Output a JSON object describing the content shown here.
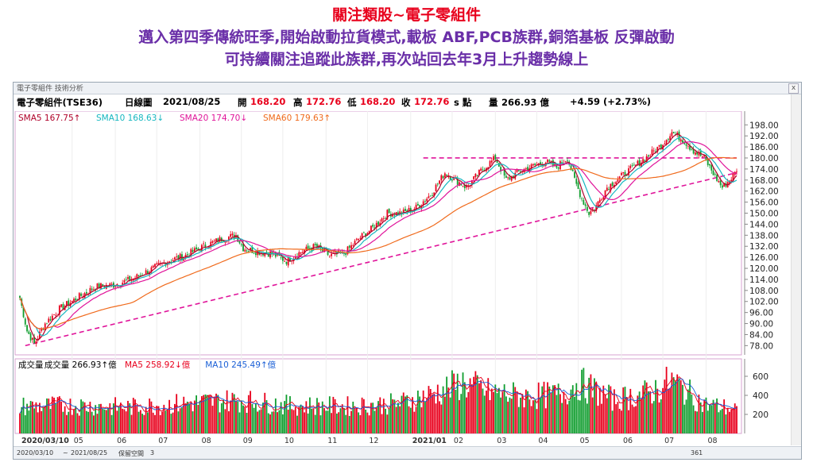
{
  "headline": {
    "line1": "關注類股~電子零組件",
    "line2": "邁入第四季傳統旺季,開始啟動拉貨模式,載板 ABF,PCB族群,銅箔基板 反彈啟動",
    "line3": "可持續關注追蹤此族群,再次站回去年3月上升趨勢線上"
  },
  "window": {
    "tab_title": "電子零組件 技術分析",
    "close_label": "x"
  },
  "quote": {
    "name": "電子零組件(TSE36)",
    "period": "日線圖",
    "date": "2021/08/25",
    "open_label": "開",
    "open": "168.20",
    "high_label": "高",
    "high": "172.76",
    "low_label": "低",
    "low": "168.20",
    "close_label": "收",
    "close": "172.76",
    "unit": "s 點",
    "volume_label": "量",
    "volume": "266.93 億",
    "change": "+4.59 (+2.73%)"
  },
  "price_legend": [
    {
      "text": "SMA5 167.75↑",
      "color": "#b0002a"
    },
    {
      "text": "SMA10 168.63↓",
      "color": "#17b7c0"
    },
    {
      "text": "SMA20 174.70↓",
      "color": "#e0149a"
    },
    {
      "text": "SMA60 179.63↑",
      "color": "#f06a1c"
    }
  ],
  "volume_legend": [
    {
      "text": "成交量",
      "color": "#000000"
    },
    {
      "text": "成交量 266.93↑億",
      "color": "#000000"
    },
    {
      "text": "MA5 258.92↓億",
      "color": "#e8001c"
    },
    {
      "text": "MA10 245.49↑億",
      "color": "#1a5fd6"
    }
  ],
  "bottom": {
    "start_date": "2020/03/10",
    "end_date": "2021/08/25",
    "range_label": "保留空間",
    "range_value": "3",
    "count": "361"
  },
  "colors": {
    "up": "#e8001c",
    "down": "#0f9d2e",
    "trend": "#e0149a"
  },
  "chart_data": [
    {
      "type": "candlestick",
      "y_ticks": [
        "198.00",
        "192.00",
        "186.00",
        "180.00",
        "174.00",
        "168.00",
        "162.00",
        "156.00",
        "150.00",
        "144.00",
        "138.00",
        "132.00",
        "126.00",
        "120.00",
        "114.00",
        "108.00",
        "102.00",
        "96.00",
        "90.00",
        "84.00",
        "78.00"
      ],
      "ylim": [
        76,
        202
      ],
      "x_labels": [
        "2020/03/10",
        "05",
        "06",
        "07",
        "08",
        "09",
        "10",
        "11",
        "12",
        "2021/01",
        "02",
        "03",
        "04",
        "05",
        "06",
        "07",
        "08"
      ],
      "close_anchors": [
        [
          0,
          104
        ],
        [
          4,
          86
        ],
        [
          8,
          79
        ],
        [
          14,
          90
        ],
        [
          22,
          98
        ],
        [
          32,
          104
        ],
        [
          42,
          110
        ],
        [
          52,
          111
        ],
        [
          62,
          114
        ],
        [
          72,
          119
        ],
        [
          82,
          124
        ],
        [
          92,
          127
        ],
        [
          102,
          132
        ],
        [
          112,
          136
        ],
        [
          120,
          138
        ],
        [
          124,
          131
        ],
        [
          132,
          129
        ],
        [
          140,
          128
        ],
        [
          148,
          124
        ],
        [
          156,
          129
        ],
        [
          164,
          132
        ],
        [
          172,
          127
        ],
        [
          180,
          128
        ],
        [
          188,
          136
        ],
        [
          196,
          142
        ],
        [
          204,
          150
        ],
        [
          212,
          150
        ],
        [
          220,
          153
        ],
        [
          228,
          160
        ],
        [
          236,
          172
        ],
        [
          242,
          168
        ],
        [
          248,
          164
        ],
        [
          256,
          173
        ],
        [
          264,
          180
        ],
        [
          270,
          168
        ],
        [
          278,
          173
        ],
        [
          286,
          176
        ],
        [
          292,
          178
        ],
        [
          298,
          175
        ],
        [
          304,
          180
        ],
        [
          308,
          168
        ],
        [
          312,
          158
        ],
        [
          316,
          150
        ],
        [
          320,
          154
        ],
        [
          326,
          164
        ],
        [
          334,
          170
        ],
        [
          342,
          176
        ],
        [
          350,
          182
        ],
        [
          356,
          187
        ],
        [
          362,
          194
        ],
        [
          368,
          190
        ],
        [
          374,
          184
        ],
        [
          380,
          180
        ],
        [
          386,
          170
        ],
        [
          390,
          164
        ],
        [
          394,
          168
        ],
        [
          398,
          172.76
        ]
      ],
      "trend_line": {
        "from": [
          3,
          78
        ],
        "to": [
          398,
          172
        ]
      },
      "resistance_line": {
        "from": [
          224,
          180
        ],
        "to": [
          398,
          180
        ]
      },
      "title": "",
      "xlabel": "",
      "ylabel": ""
    },
    {
      "type": "bar",
      "name": "volume",
      "y_ticks": [
        "600",
        "400",
        "200"
      ],
      "ylim": [
        0,
        700
      ],
      "volume_anchors": [
        [
          0,
          300
        ],
        [
          30,
          310
        ],
        [
          60,
          290
        ],
        [
          90,
          330
        ],
        [
          120,
          370
        ],
        [
          150,
          310
        ],
        [
          180,
          300
        ],
        [
          210,
          330
        ],
        [
          230,
          440
        ],
        [
          246,
          560
        ],
        [
          260,
          460
        ],
        [
          280,
          410
        ],
        [
          300,
          430
        ],
        [
          310,
          560
        ],
        [
          330,
          370
        ],
        [
          350,
          450
        ],
        [
          362,
          580
        ],
        [
          380,
          320
        ],
        [
          398,
          270
        ]
      ]
    }
  ]
}
